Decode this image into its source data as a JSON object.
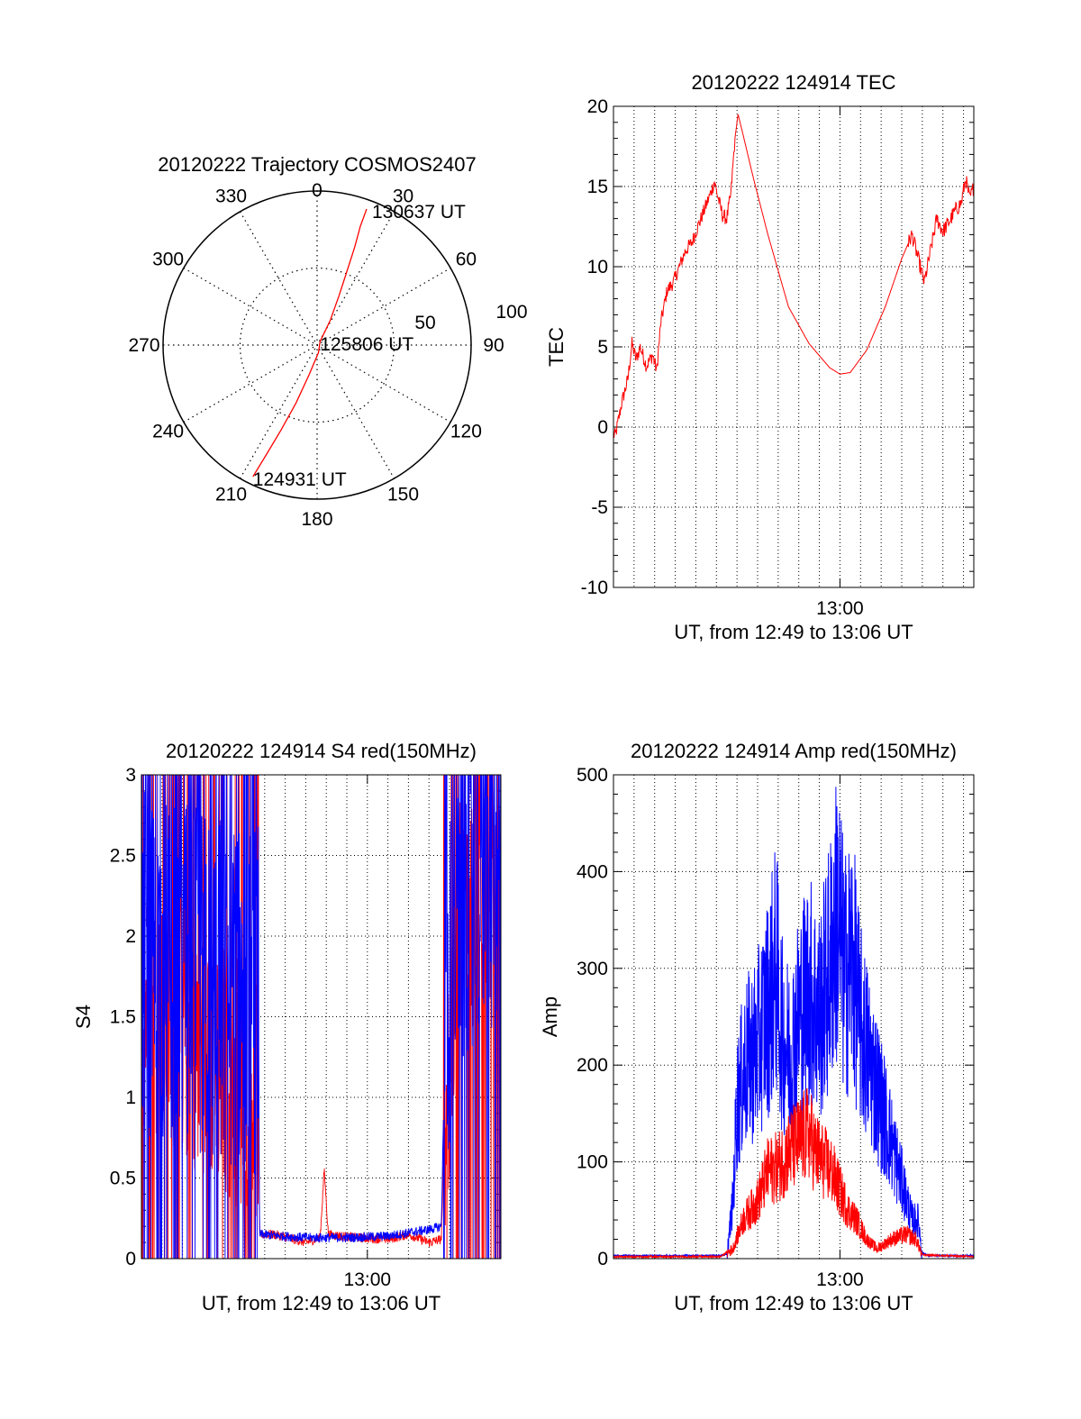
{
  "chart_data": [
    {
      "id": "trajectory",
      "type": "polar",
      "title": "20120222 Trajectory COSMOS2407",
      "angle_labels": [
        "0",
        "30",
        "60",
        "90",
        "120",
        "150",
        "180",
        "210",
        "240",
        "270",
        "300",
        "330"
      ],
      "ring_labels": [
        "50",
        "100"
      ],
      "r_max": 100,
      "series": [
        {
          "color": "#ff0000",
          "points": [
            [
              206,
              95
            ],
            [
              205,
              80
            ],
            [
              203,
              60
            ],
            [
              200,
              40
            ],
            [
              195,
              20
            ],
            [
              170,
              5
            ],
            [
              40,
              3
            ],
            [
              28,
              18
            ],
            [
              24,
              35
            ],
            [
              22,
              52
            ],
            [
              21,
              68
            ],
            [
              20,
              82
            ],
            [
              20,
              94
            ]
          ]
        }
      ],
      "annotations": [
        {
          "text": "124931 UT",
          "az": 206,
          "r": 95
        },
        {
          "text": "125806 UT",
          "az": 40,
          "r": 3
        },
        {
          "text": "130637 UT",
          "az": 20,
          "r": 94
        }
      ]
    },
    {
      "id": "tec",
      "type": "line",
      "title": "20120222 124914 TEC",
      "xlabel": "UT, from 12:49 to 13:06 UT",
      "ylabel": "TEC",
      "x_range_minutes": [
        0,
        17.5
      ],
      "x_tick": {
        "label": "13:00",
        "minute": 11
      },
      "ylim": [
        -10,
        20
      ],
      "yticks": [
        "20",
        "15",
        "10",
        "5",
        "0",
        "-5",
        "-10"
      ],
      "series": [
        {
          "color": "#ff0000",
          "points": [
            [
              0.1,
              -0.5
            ],
            [
              0.4,
              1.5
            ],
            [
              0.7,
              3.0
            ],
            [
              0.9,
              5.2
            ],
            [
              1.1,
              4.2
            ],
            [
              1.3,
              5.0
            ],
            [
              1.6,
              3.8
            ],
            [
              1.9,
              4.5
            ],
            [
              2.1,
              3.5
            ],
            [
              2.3,
              6.5
            ],
            [
              2.6,
              8.5
            ],
            [
              2.9,
              9.0
            ],
            [
              3.2,
              10.0
            ],
            [
              3.5,
              11.0
            ],
            [
              3.8,
              11.5
            ],
            [
              4.1,
              12.5
            ],
            [
              4.4,
              13.5
            ],
            [
              4.7,
              14.5
            ],
            [
              4.9,
              15.3
            ],
            [
              5.1,
              14.2
            ],
            [
              5.3,
              13.2
            ],
            [
              5.5,
              13.0
            ],
            [
              5.7,
              14.5
            ],
            [
              5.9,
              18.0
            ],
            [
              6.05,
              19.5
            ],
            [
              6.3,
              18.2
            ],
            [
              6.8,
              15.5
            ],
            [
              7.5,
              12.0
            ],
            [
              8.5,
              7.5
            ],
            [
              9.5,
              5.2
            ],
            [
              10.5,
              3.7
            ],
            [
              11.0,
              3.3
            ],
            [
              11.5,
              3.4
            ],
            [
              12.3,
              4.8
            ],
            [
              13.2,
              7.5
            ],
            [
              14.0,
              10.5
            ],
            [
              14.5,
              12.0
            ],
            [
              14.8,
              10.5
            ],
            [
              15.1,
              9.0
            ],
            [
              15.4,
              11.0
            ],
            [
              15.7,
              13.0
            ],
            [
              16.0,
              12.2
            ],
            [
              16.3,
              12.8
            ],
            [
              16.6,
              13.5
            ],
            [
              16.9,
              14.0
            ],
            [
              17.1,
              15.5
            ],
            [
              17.3,
              14.2
            ],
            [
              17.5,
              15.0
            ]
          ]
        }
      ]
    },
    {
      "id": "s4",
      "type": "line",
      "title": "20120222 124914 S4 red(150MHz)",
      "xlabel": "UT, from 12:49 to 13:06 UT",
      "ylabel": "S4",
      "x_range_minutes": [
        0,
        17.5
      ],
      "x_tick": {
        "label": "13:00",
        "minute": 11
      },
      "ylim": [
        0,
        3
      ],
      "yticks": [
        "3",
        "2.5",
        "2",
        "1.5",
        "1",
        "0.5",
        "0"
      ],
      "series": [
        {
          "color": "#ff0000",
          "points": [
            [
              0.0,
              1.6
            ],
            [
              5.7,
              1.0
            ],
            [
              5.75,
              0.15
            ],
            [
              6.5,
              0.15
            ],
            [
              8.0,
              0.1
            ],
            [
              8.7,
              0.13
            ],
            [
              8.9,
              0.55
            ],
            [
              9.1,
              0.15
            ],
            [
              10.5,
              0.13
            ],
            [
              12.0,
              0.12
            ],
            [
              13.0,
              0.15
            ],
            [
              14.0,
              0.1
            ],
            [
              14.6,
              0.12
            ],
            [
              14.8,
              1.0
            ],
            [
              15.1,
              1.2
            ],
            [
              15.3,
              2.2
            ],
            [
              16.0,
              2.2
            ],
            [
              17.5,
              2.0
            ]
          ]
        },
        {
          "color": "#0000ff",
          "points": [
            [
              0.0,
              1.8
            ],
            [
              5.7,
              1.6
            ],
            [
              5.75,
              0.15
            ],
            [
              8.0,
              0.13
            ],
            [
              10.0,
              0.13
            ],
            [
              12.0,
              0.14
            ],
            [
              14.0,
              0.18
            ],
            [
              14.6,
              0.2
            ],
            [
              14.8,
              1.5
            ],
            [
              15.2,
              2.0
            ],
            [
              16.0,
              2.4
            ],
            [
              17.5,
              2.5
            ]
          ]
        }
      ]
    },
    {
      "id": "amp",
      "type": "line",
      "title": "20120222 124914 Amp red(150MHz)",
      "xlabel": "UT, from 12:49 to 13:06 UT",
      "ylabel": "Amp",
      "x_range_minutes": [
        0,
        17.5
      ],
      "x_tick": {
        "label": "13:00",
        "minute": 11
      },
      "ylim": [
        0,
        500
      ],
      "yticks": [
        "500",
        "400",
        "300",
        "200",
        "100",
        "0"
      ],
      "series": [
        {
          "color": "#0000ff",
          "points": [
            [
              0.0,
              2
            ],
            [
              5.0,
              2
            ],
            [
              5.5,
              3
            ],
            [
              5.8,
              60
            ],
            [
              6.0,
              160
            ],
            [
              6.4,
              200
            ],
            [
              7.0,
              220
            ],
            [
              7.5,
              260
            ],
            [
              7.9,
              300
            ],
            [
              8.2,
              230
            ],
            [
              8.6,
              210
            ],
            [
              9.0,
              250
            ],
            [
              9.5,
              280
            ],
            [
              10.0,
              250
            ],
            [
              10.5,
              300
            ],
            [
              10.9,
              360
            ],
            [
              11.2,
              290
            ],
            [
              11.6,
              310
            ],
            [
              12.0,
              240
            ],
            [
              12.5,
              200
            ],
            [
              13.0,
              160
            ],
            [
              13.5,
              120
            ],
            [
              14.0,
              80
            ],
            [
              14.5,
              40
            ],
            [
              14.8,
              40
            ],
            [
              15.0,
              5
            ],
            [
              15.3,
              2
            ],
            [
              17.5,
              2
            ]
          ]
        },
        {
          "color": "#ff0000",
          "points": [
            [
              0.0,
              1
            ],
            [
              5.2,
              1
            ],
            [
              5.8,
              10
            ],
            [
              6.3,
              40
            ],
            [
              7.0,
              60
            ],
            [
              7.5,
              90
            ],
            [
              8.0,
              95
            ],
            [
              8.5,
              110
            ],
            [
              9.0,
              120
            ],
            [
              9.5,
              130
            ],
            [
              9.8,
              110
            ],
            [
              10.2,
              100
            ],
            [
              10.6,
              90
            ],
            [
              11.0,
              70
            ],
            [
              11.4,
              50
            ],
            [
              11.8,
              40
            ],
            [
              12.3,
              20
            ],
            [
              12.8,
              10
            ],
            [
              13.5,
              20
            ],
            [
              14.2,
              25
            ],
            [
              14.7,
              20
            ],
            [
              15.0,
              3
            ],
            [
              17.5,
              1
            ]
          ]
        }
      ]
    }
  ]
}
